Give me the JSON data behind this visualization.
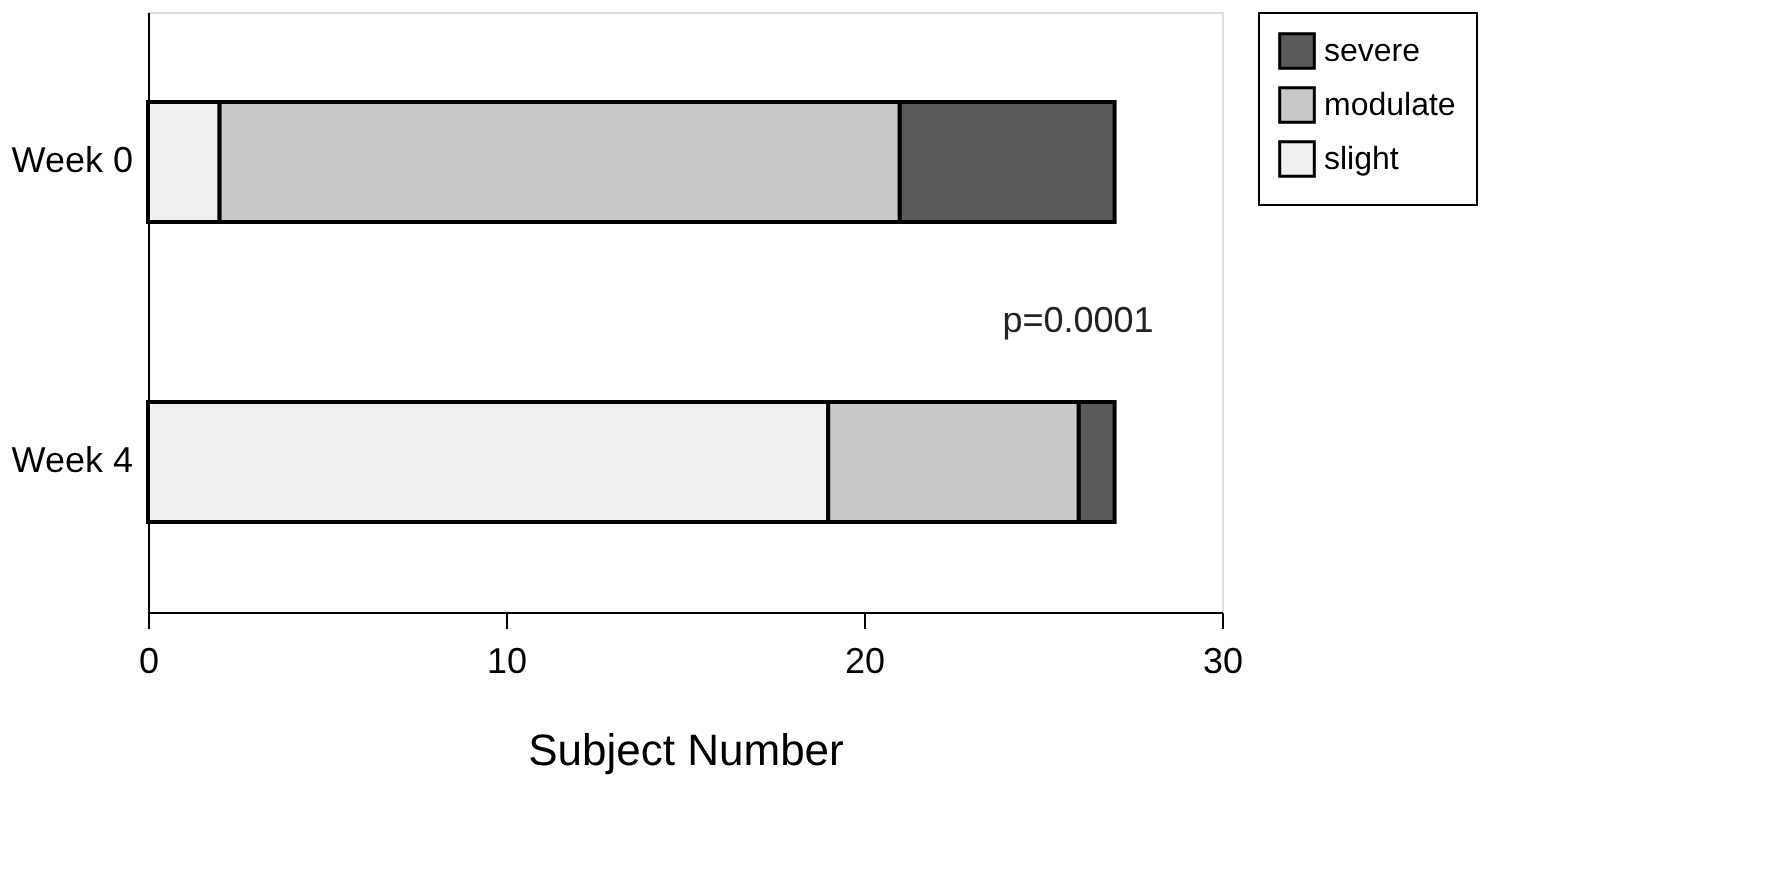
{
  "chart_data": {
    "type": "bar",
    "orientation": "horizontal",
    "stacked": true,
    "xlabel": "Subject Number",
    "categories": [
      "Week 0",
      "Week 4"
    ],
    "series": [
      {
        "name": "slight",
        "color": "#f0f0f0",
        "values": [
          2,
          19
        ]
      },
      {
        "name": "modulate",
        "color": "#c8c8c8",
        "values": [
          19,
          7
        ]
      },
      {
        "name": "severe",
        "color": "#5a5a5a",
        "values": [
          6,
          1
        ]
      }
    ],
    "xlim": [
      0,
      30
    ],
    "xticks": [
      0,
      10,
      20,
      30
    ],
    "legend": "right",
    "grid": false,
    "annotations": [
      "p=0.0001"
    ]
  }
}
